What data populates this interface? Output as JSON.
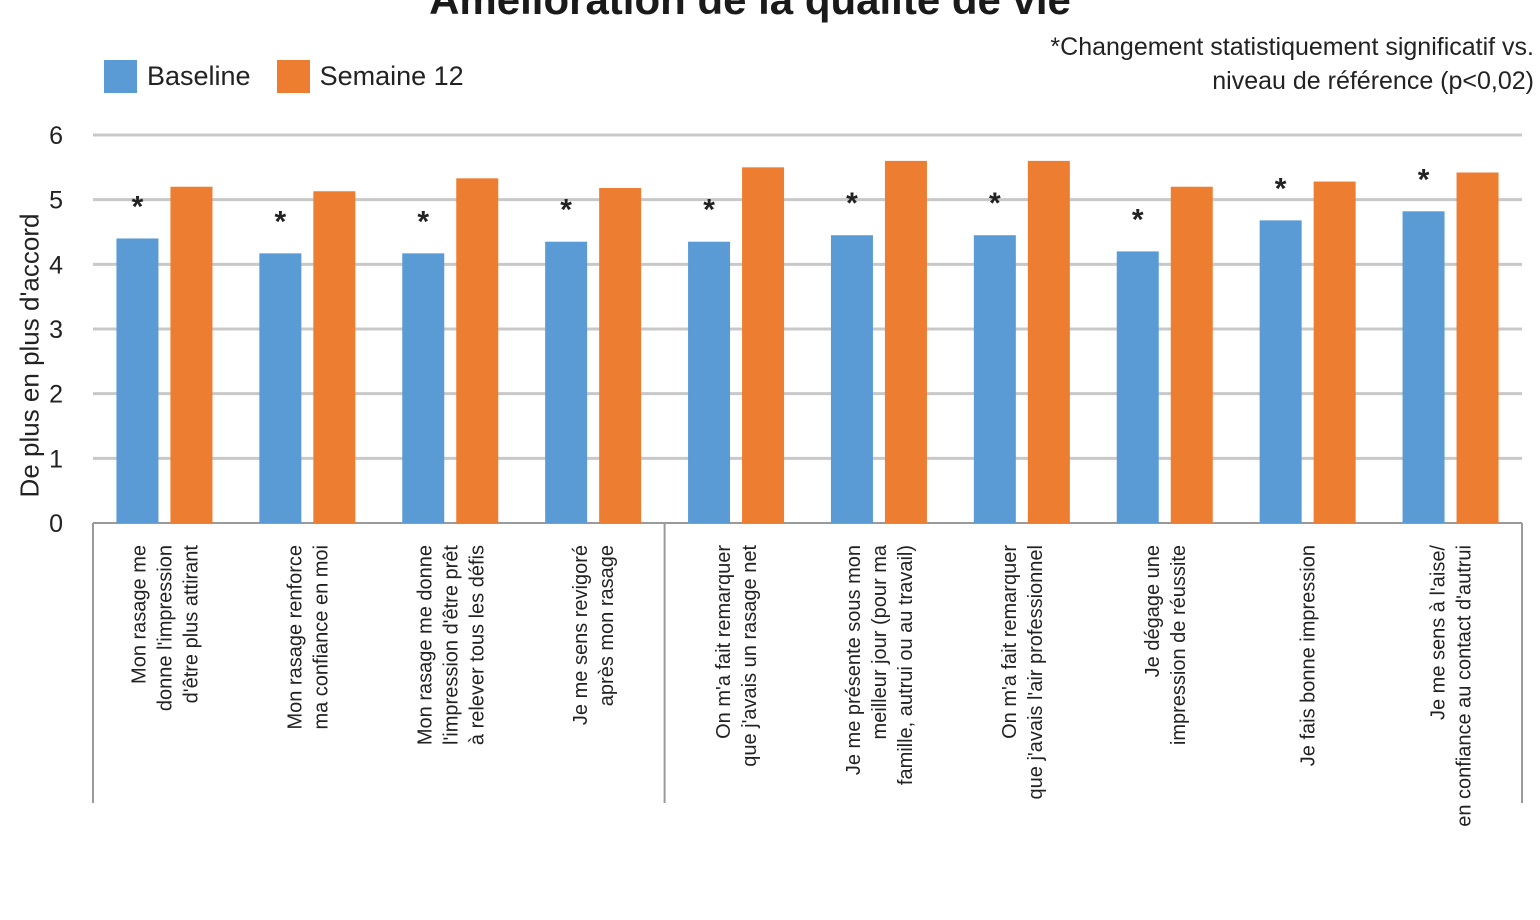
{
  "chart_data": {
    "type": "bar",
    "title": "Amélioration de la qualité de vie",
    "ylabel": "De plus en plus d'accord",
    "ylim": [
      0,
      6
    ],
    "yticks": [
      0,
      1,
      2,
      3,
      4,
      5,
      6
    ],
    "legend_position": "top-left",
    "note": [
      "*Changement statistiquement significatif vs.",
      "niveau de référence (p<0,02)"
    ],
    "significance_marker": "*",
    "categories": [
      [
        "Mon rasage me",
        "donne l'impression",
        "d'être plus attirant"
      ],
      [
        "Mon rasage renforce",
        "ma confiance en moi"
      ],
      [
        "Mon rasage me donne",
        "l'impression d'être prêt",
        "à relever tous les défis"
      ],
      [
        "Je me sens revigoré",
        "après mon rasage"
      ],
      [
        "On m'a fait remarquer",
        "que j'avais un rasage net"
      ],
      [
        "Je me présente sous mon",
        "meilleur jour (pour ma",
        "famille, autrui ou au travail)"
      ],
      [
        "On m'a fait remarquer",
        "que j'avais l'air professionnel"
      ],
      [
        "Je dégage une",
        "impression de réussite"
      ],
      [
        "Je fais bonne impression"
      ],
      [
        "Je me sens à l'aise/",
        "en confiance au contact d'autrui"
      ]
    ],
    "series": [
      {
        "name": "Baseline",
        "color": "#5b9bd5",
        "values": [
          4.4,
          4.17,
          4.17,
          4.35,
          4.35,
          4.45,
          4.45,
          4.2,
          4.68,
          4.82
        ]
      },
      {
        "name": "Semaine 12",
        "color": "#ed7d31",
        "values": [
          5.2,
          5.13,
          5.33,
          5.18,
          5.5,
          5.6,
          5.6,
          5.2,
          5.28,
          5.42
        ]
      }
    ],
    "group_dividers_after": [
      4
    ]
  }
}
